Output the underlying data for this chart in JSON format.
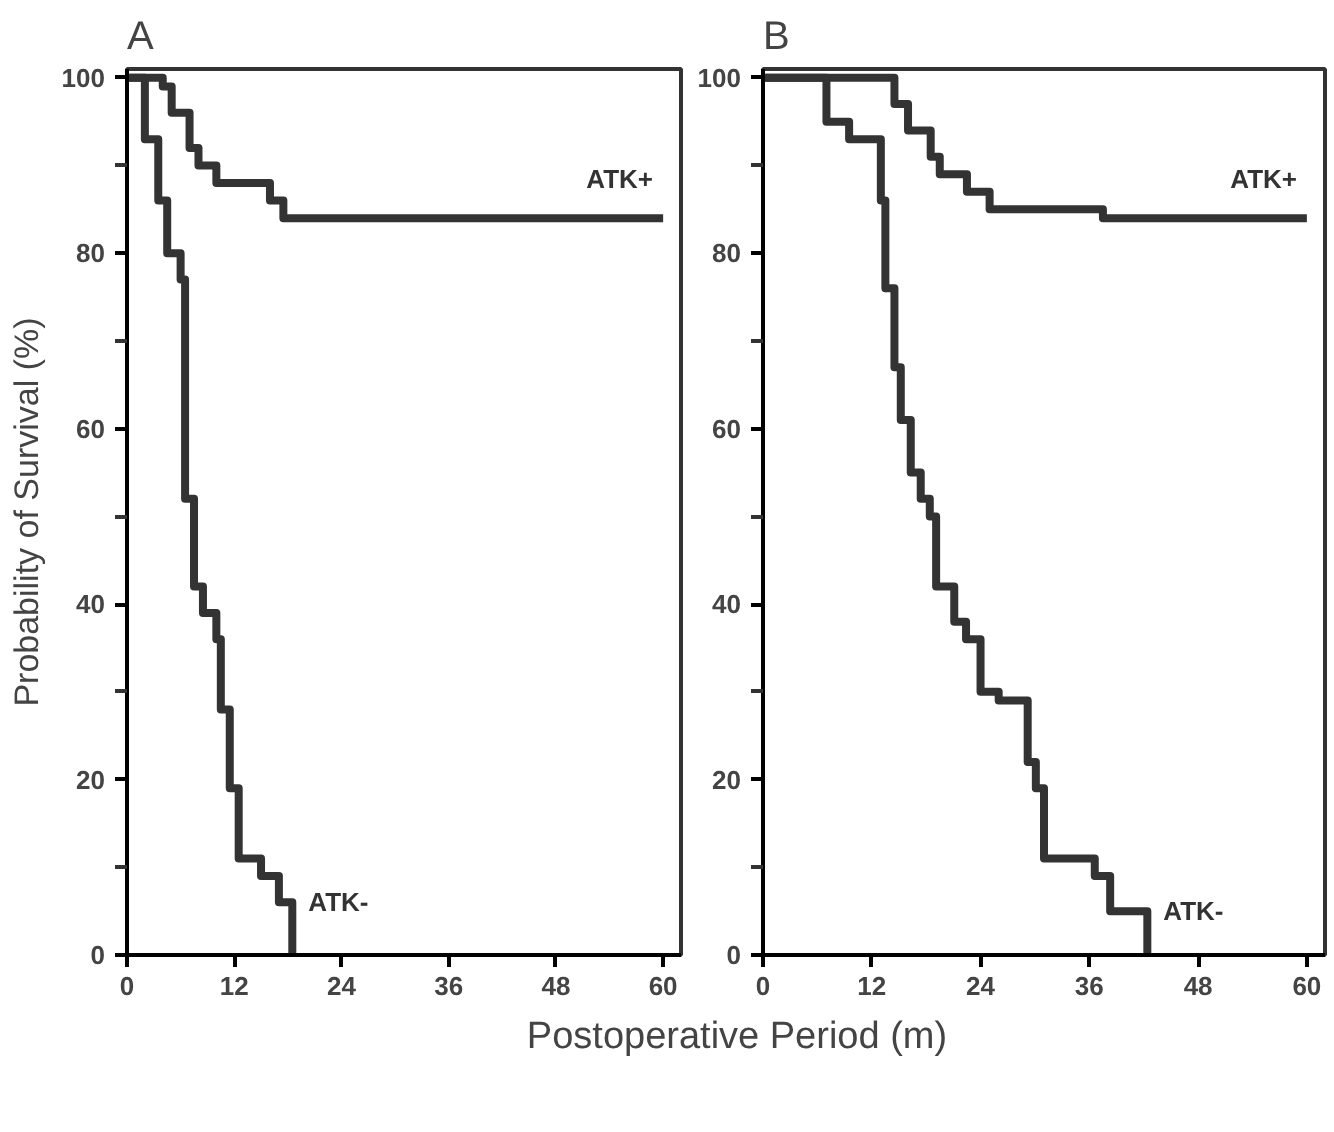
{
  "chart_data": [
    {
      "type": "step",
      "title": "A",
      "ylabel": "Probability of Survival (%)",
      "xlabel": "Postoperative Period (m)",
      "xlim": [
        0,
        62
      ],
      "ylim": [
        0,
        101
      ],
      "xticks": [
        0,
        12,
        24,
        36,
        48,
        60
      ],
      "yticks": [
        0,
        {
          "value": 10,
          "label": null
        },
        20,
        {
          "value": 30,
          "label": null
        },
        40,
        {
          "value": 50,
          "label": null
        },
        60,
        {
          "value": 70,
          "label": null
        },
        80,
        {
          "value": 90,
          "label": null
        },
        100
      ],
      "grid": false,
      "legend": false,
      "marker": "none",
      "line_style": "solid",
      "series": [
        {
          "name": "ATK+",
          "color": "#333333",
          "x": [
            0,
            4,
            5,
            7,
            8,
            10,
            16,
            17.5,
            60
          ],
          "values": [
            100,
            99,
            96,
            92,
            90,
            88,
            86,
            84,
            84
          ]
        },
        {
          "name": "ATK-",
          "color": "#333333",
          "x": [
            0,
            2,
            3.5,
            4.5,
            6,
            6.5,
            7.5,
            8.5,
            10,
            10.5,
            11.5,
            12.5,
            15,
            17,
            18.5
          ],
          "values": [
            100,
            93,
            86,
            80,
            77,
            52,
            42,
            39,
            36,
            28,
            19,
            11,
            9,
            6,
            0
          ]
        }
      ]
    },
    {
      "type": "step",
      "title": "B",
      "xlim": [
        0,
        62
      ],
      "ylim": [
        0,
        101
      ],
      "xticks": [
        0,
        12,
        24,
        36,
        48,
        60
      ],
      "yticks": [
        0,
        {
          "value": 10,
          "label": null
        },
        20,
        {
          "value": 30,
          "label": null
        },
        40,
        {
          "value": 50,
          "label": null
        },
        60,
        {
          "value": 70,
          "label": null
        },
        80,
        {
          "value": 90,
          "label": null
        },
        100
      ],
      "grid": false,
      "legend": false,
      "marker": "none",
      "line_style": "solid",
      "series": [
        {
          "name": "ATK+",
          "color": "#333333",
          "x": [
            0,
            14.5,
            16,
            18.5,
            19.5,
            22.5,
            25,
            37.5,
            60
          ],
          "values": [
            100,
            97,
            94,
            91,
            89,
            87,
            85,
            84,
            84
          ]
        },
        {
          "name": "ATK-",
          "color": "#333333",
          "x": [
            0,
            7,
            9.5,
            13,
            13.5,
            14.5,
            15.2,
            16.3,
            17.4,
            18.4,
            19.1,
            21.1,
            22.4,
            24,
            26,
            29.2,
            30.1,
            31,
            36.6,
            38.3,
            42.4
          ],
          "values": [
            100,
            95,
            93,
            86,
            76,
            67,
            61,
            55,
            52,
            50,
            42,
            38,
            36,
            30,
            29,
            22,
            19,
            11,
            9,
            5,
            0
          ]
        }
      ]
    }
  ]
}
